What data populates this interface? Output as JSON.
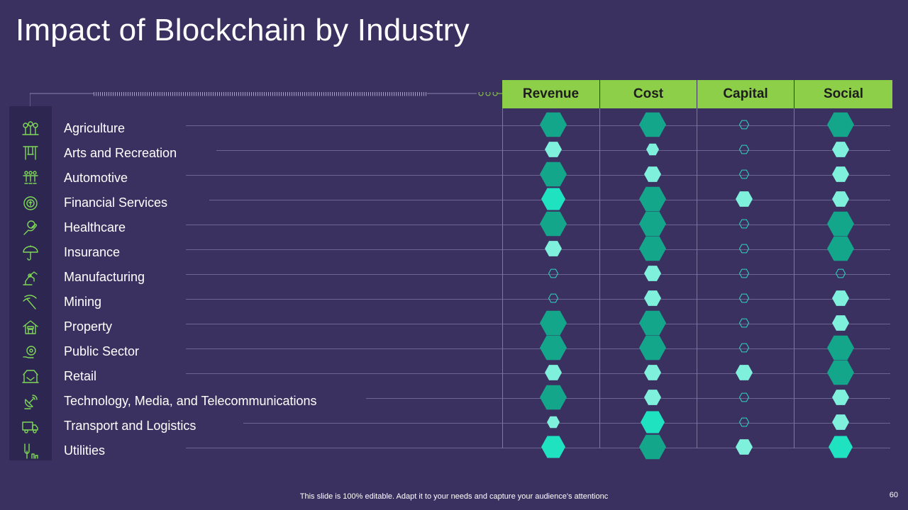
{
  "title": "Impact of Blockchain by Industry",
  "columns": [
    "Revenue",
    "Cost",
    "Capital",
    "Social"
  ],
  "rows": [
    {
      "label": "Agriculture",
      "icon": "farm-icon",
      "levels": [
        3,
        3,
        0,
        3
      ]
    },
    {
      "label": "Arts and Recreation",
      "icon": "swing-icon",
      "levels": [
        1,
        0.5,
        0,
        1
      ]
    },
    {
      "label": "Automotive",
      "icon": "assembly-icon",
      "levels": [
        3,
        1,
        0,
        1
      ]
    },
    {
      "label": "Financial Services",
      "icon": "coin-gear-icon",
      "levels": [
        2,
        3,
        1,
        1
      ]
    },
    {
      "label": "Healthcare",
      "icon": "hand-care-icon",
      "levels": [
        3,
        3,
        0,
        3
      ]
    },
    {
      "label": "Insurance",
      "icon": "umbrella-icon",
      "levels": [
        1,
        3,
        0,
        3
      ]
    },
    {
      "label": "Manufacturing",
      "icon": "robot-arm-icon",
      "levels": [
        0,
        1,
        0,
        0
      ]
    },
    {
      "label": "Mining",
      "icon": "pickaxe-icon",
      "levels": [
        0,
        1,
        0,
        1
      ]
    },
    {
      "label": "Property",
      "icon": "house-icon",
      "levels": [
        3,
        3,
        0,
        1
      ]
    },
    {
      "label": "Public Sector",
      "icon": "gear-hand-icon",
      "levels": [
        3,
        3,
        0,
        3
      ]
    },
    {
      "label": "Retail",
      "icon": "storefront-icon",
      "levels": [
        1,
        1,
        1,
        3
      ]
    },
    {
      "label": "Technology, Media, and Telecommunications",
      "icon": "satellite-icon",
      "levels": [
        3,
        1,
        0,
        1
      ]
    },
    {
      "label": "Transport and Logistics",
      "icon": "truck-icon",
      "levels": [
        0.5,
        2,
        0,
        1
      ]
    },
    {
      "label": "Utilities",
      "icon": "tools-icon",
      "levels": [
        2,
        3,
        1,
        2
      ]
    }
  ],
  "colors": {
    "background": "#3a3160",
    "header": "#8ecf4a",
    "level3": "#14a68a",
    "level2": "#1fe3c0",
    "level1": "#7ff0db",
    "outline": "#2fd8bf",
    "icon": "#7ed957"
  },
  "footer": "This slide is 100% editable. Adapt it to your needs and capture your audience's attentionc",
  "page_number": "60"
}
